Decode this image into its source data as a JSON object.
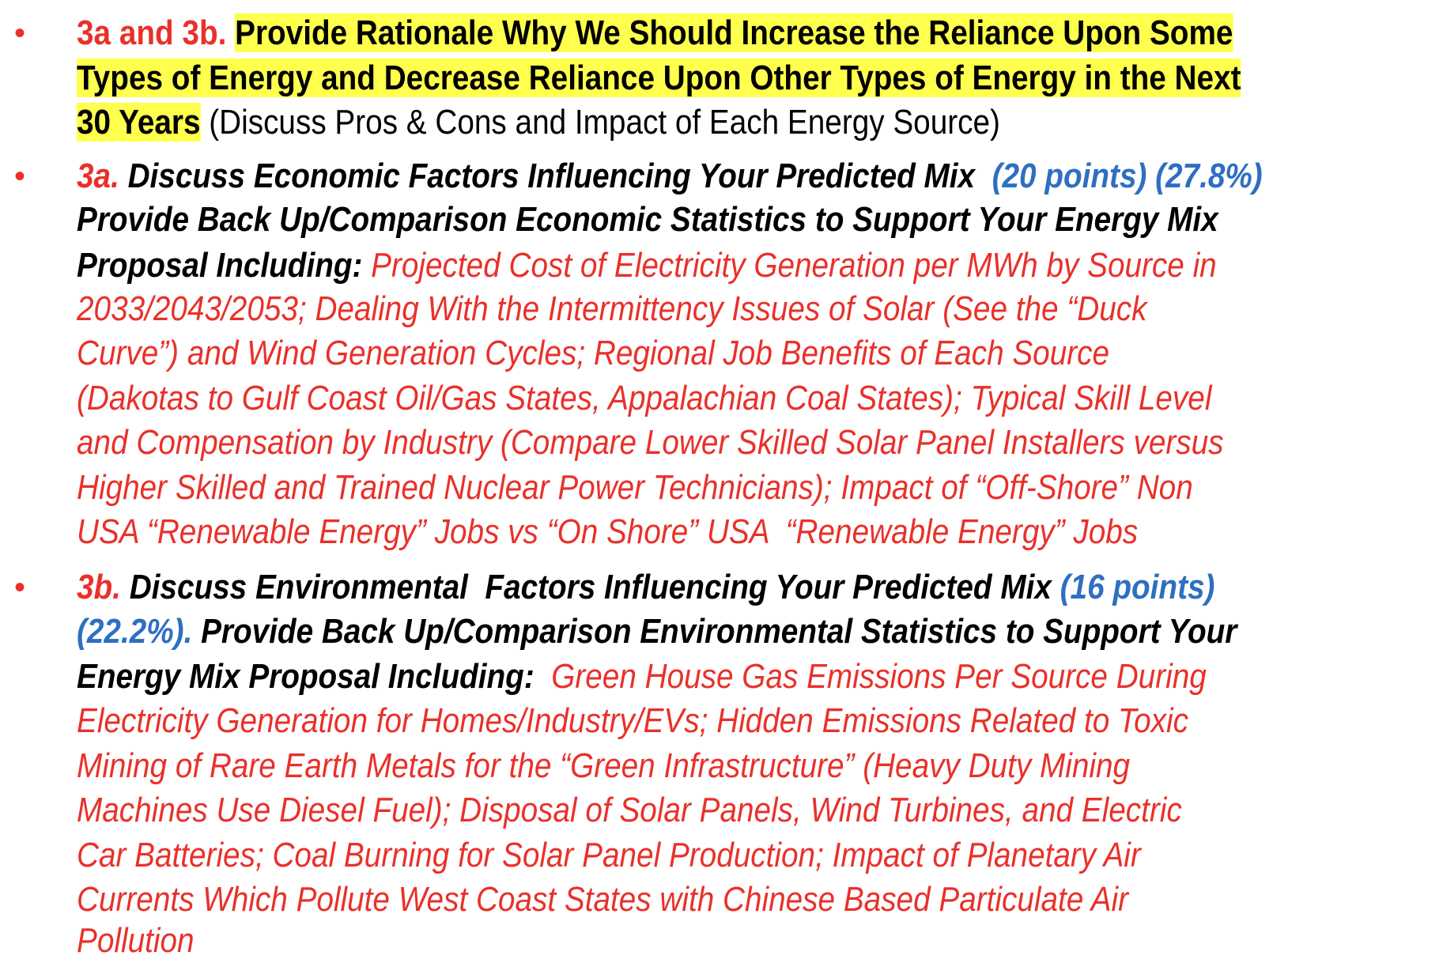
{
  "colors": {
    "red": "#e8312a",
    "blue": "#2e6fc0",
    "yellow": "#ffff4d",
    "text": "#000000"
  },
  "bullet_icon": "red-round-bullet",
  "bullet_glyph": "•",
  "lines": [
    {
      "bullet": true,
      "segments": [
        {
          "style": "red-bold",
          "text": "3a and 3b. "
        },
        {
          "style": "hl",
          "text": "Provide Rationale Why We Should Increase the Reliance Upon Some"
        }
      ]
    },
    {
      "segments": [
        {
          "style": "hl",
          "text": "Types of Energy and Decrease Reliance Upon Other Types of Energy in the Next"
        }
      ]
    },
    {
      "segments": [
        {
          "style": "hl",
          "text": "30 Years"
        },
        {
          "style": "plain",
          "text": " (Discuss Pros & Cons and Impact of Each Energy Source)"
        }
      ]
    },
    {
      "bullet": true,
      "segments": [
        {
          "style": "red-bi",
          "text": "3a. "
        },
        {
          "style": "black-bi",
          "text": "Discuss Economic Factors Influencing Your Predicted Mix  "
        },
        {
          "style": "blue-bi",
          "text": "(20 points) (27.8%)"
        }
      ]
    },
    {
      "segments": [
        {
          "style": "black-bi",
          "text": "Provide Back Up/Comparison Economic Statistics to Support Your Energy Mix"
        }
      ]
    },
    {
      "segments": [
        {
          "style": "black-bi",
          "text": "Proposal Including: "
        },
        {
          "style": "red-i",
          "text": "Projected Cost of Electricity Generation per MWh by Source in"
        }
      ]
    },
    {
      "segments": [
        {
          "style": "red-i",
          "text": "2033/2043/2053; Dealing With the Intermittency Issues of Solar (See the “Duck"
        }
      ]
    },
    {
      "segments": [
        {
          "style": "red-i",
          "text": "Curve”) and Wind Generation Cycles; Regional Job Benefits of Each Source"
        }
      ]
    },
    {
      "segments": [
        {
          "style": "red-i",
          "text": "(Dakotas to Gulf Coast Oil/Gas States, Appalachian Coal States); Typical Skill Level"
        }
      ]
    },
    {
      "segments": [
        {
          "style": "red-i",
          "text": "and Compensation by Industry (Compare Lower Skilled Solar Panel Installers versus"
        }
      ]
    },
    {
      "segments": [
        {
          "style": "red-i",
          "text": "Higher Skilled and Trained Nuclear Power Technicians); Impact of “Off-Shore” Non"
        }
      ]
    },
    {
      "segments": [
        {
          "style": "red-i",
          "text": "USA “Renewable Energy” Jobs vs “On Shore” USA  “Renewable Energy” Jobs"
        }
      ]
    },
    {
      "bullet": true,
      "segments": [
        {
          "style": "red-bi",
          "text": "3b. "
        },
        {
          "style": "black-bi",
          "text": "Discuss Environmental  Factors Influencing Your Predicted Mix "
        },
        {
          "style": "blue-bi",
          "text": "(16 points)"
        }
      ]
    },
    {
      "segments": [
        {
          "style": "blue-bi",
          "text": "(22.2%)."
        },
        {
          "style": "black-bi",
          "text": " Provide Back Up/Comparison Environmental Statistics to Support Your"
        }
      ]
    },
    {
      "segments": [
        {
          "style": "black-bi",
          "text": "Energy Mix Proposal Including:  "
        },
        {
          "style": "red-i",
          "text": "Green House Gas Emissions Per Source During"
        }
      ]
    },
    {
      "segments": [
        {
          "style": "red-i",
          "text": "Electricity Generation for Homes/Industry/EVs; Hidden Emissions Related to Toxic"
        }
      ]
    },
    {
      "segments": [
        {
          "style": "red-i",
          "text": "Mining of Rare Earth Metals for the “Green Infrastructure” (Heavy Duty Mining"
        }
      ]
    },
    {
      "segments": [
        {
          "style": "red-i",
          "text": "Machines Use Diesel Fuel); Disposal of Solar Panels, Wind Turbines, and Electric"
        }
      ]
    },
    {
      "segments": [
        {
          "style": "red-i",
          "text": "Car Batteries; Coal Burning for Solar Panel Production; Impact of Planetary Air"
        }
      ]
    },
    {
      "segments": [
        {
          "style": "red-i",
          "text": "Currents Which Pollute West Coast States with Chinese Based Particulate Air"
        }
      ]
    },
    {
      "segments": [
        {
          "style": "red-i",
          "text": "Pollution"
        }
      ]
    }
  ]
}
